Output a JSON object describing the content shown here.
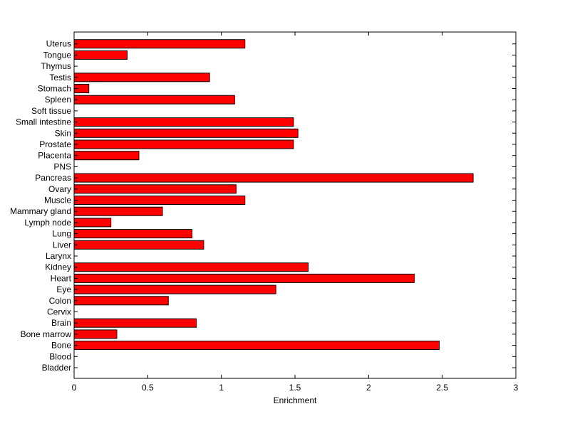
{
  "chart_data": {
    "type": "bar",
    "orientation": "horizontal",
    "xlabel": "Enrichment",
    "ylabel": "",
    "title": "",
    "xlim": [
      0,
      3
    ],
    "xticks": [
      "0",
      "0.5",
      "1",
      "1.5",
      "2",
      "2.5",
      "3"
    ],
    "grid": false,
    "legend": "none",
    "bar_color": "#ff0000",
    "categories": [
      "Bladder",
      "Blood",
      "Bone",
      "Bone marrow",
      "Brain",
      "Cervix",
      "Colon",
      "Eye",
      "Heart",
      "Kidney",
      "Larynx",
      "Liver",
      "Lung",
      "Lymph node",
      "Mammary gland",
      "Muscle",
      "Ovary",
      "Pancreas",
      "PNS",
      "Placenta",
      "Prostate",
      "Skin",
      "Small intestine",
      "Soft tissue",
      "Spleen",
      "Stomach",
      "Testis",
      "Thymus",
      "Tongue",
      "Uterus"
    ],
    "values": [
      0,
      0,
      2.48,
      0.29,
      0.83,
      0,
      0.64,
      1.37,
      2.31,
      1.59,
      0,
      0.88,
      0.8,
      0.25,
      0.6,
      1.16,
      1.1,
      2.71,
      0,
      0.44,
      1.49,
      1.52,
      1.49,
      0,
      1.09,
      0.1,
      0.92,
      0,
      0.36,
      1.16
    ]
  }
}
